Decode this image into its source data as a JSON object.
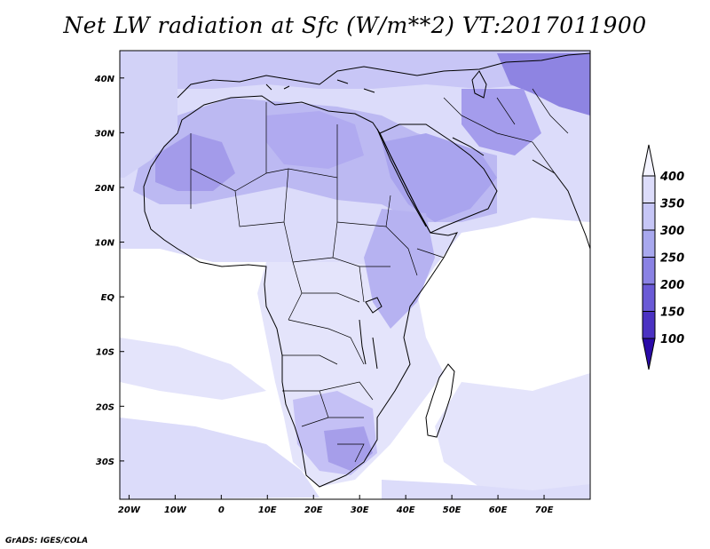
{
  "title": "Net LW radiation at Sfc (W/m**2) VT:2017011900",
  "credit": "GrADS: IGES/COLA",
  "map": {
    "lon_range": [
      -22,
      80
    ],
    "lat_range": [
      -37,
      45
    ],
    "lon_ticks": [
      {
        "value": -20,
        "label": "20W"
      },
      {
        "value": -10,
        "label": "10W"
      },
      {
        "value": 0,
        "label": "0"
      },
      {
        "value": 10,
        "label": "10E"
      },
      {
        "value": 20,
        "label": "20E"
      },
      {
        "value": 30,
        "label": "30E"
      },
      {
        "value": 40,
        "label": "40E"
      },
      {
        "value": 50,
        "label": "50E"
      },
      {
        "value": 60,
        "label": "60E"
      },
      {
        "value": 70,
        "label": "70E"
      }
    ],
    "lat_ticks": [
      {
        "value": 40,
        "label": "40N"
      },
      {
        "value": 30,
        "label": "30N"
      },
      {
        "value": 20,
        "label": "20N"
      },
      {
        "value": 10,
        "label": "10N"
      },
      {
        "value": 0,
        "label": "EQ"
      },
      {
        "value": -10,
        "label": "10S"
      },
      {
        "value": -20,
        "label": "20S"
      },
      {
        "value": -30,
        "label": "30S"
      }
    ]
  },
  "colorbar": {
    "levels": [
      "400",
      "350",
      "300",
      "250",
      "200",
      "150",
      "100"
    ],
    "colors": [
      "#f4f4ff",
      "#dcdcfa",
      "#c6c6f6",
      "#a8a8ee",
      "#8a82e4",
      "#6a5ad6",
      "#4b32c2",
      "#2a0aa8"
    ],
    "unit": "W/m**2"
  },
  "shading_colors": {
    "ocean": "#ffffff",
    "c1": "#e6e6fb",
    "c2": "#d2d2f7",
    "c3": "#b8b6f1",
    "c4": "#9c94e8",
    "c5": "#7e72dd"
  }
}
